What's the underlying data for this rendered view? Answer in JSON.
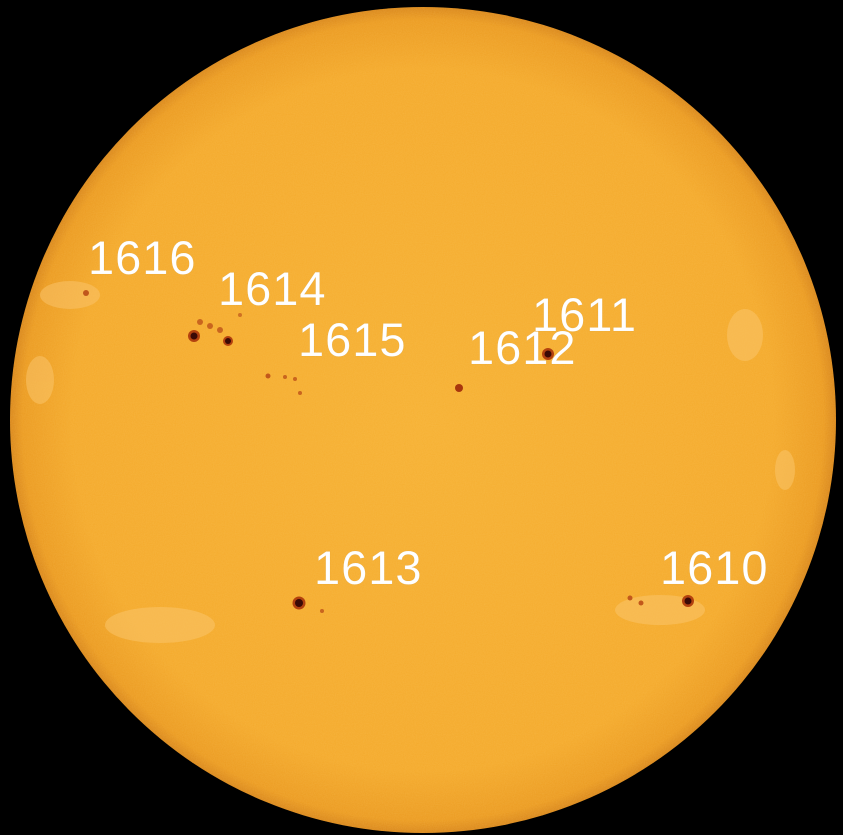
{
  "image": {
    "subject": "solar disk",
    "colors": {
      "background": "#000000",
      "disk": "#f4ab2c",
      "disk_edge": "#e8921c",
      "spot_core": "#3a0a06",
      "spot_penumbra": "#b3420f",
      "label": "#ffffff"
    }
  },
  "regions": [
    {
      "id": "1616",
      "label": "1616"
    },
    {
      "id": "1614",
      "label": "1614"
    },
    {
      "id": "1615",
      "label": "1615"
    },
    {
      "id": "1612",
      "label": "1612"
    },
    {
      "id": "1611",
      "label": "1611"
    },
    {
      "id": "1613",
      "label": "1613"
    },
    {
      "id": "1610",
      "label": "1610"
    }
  ]
}
